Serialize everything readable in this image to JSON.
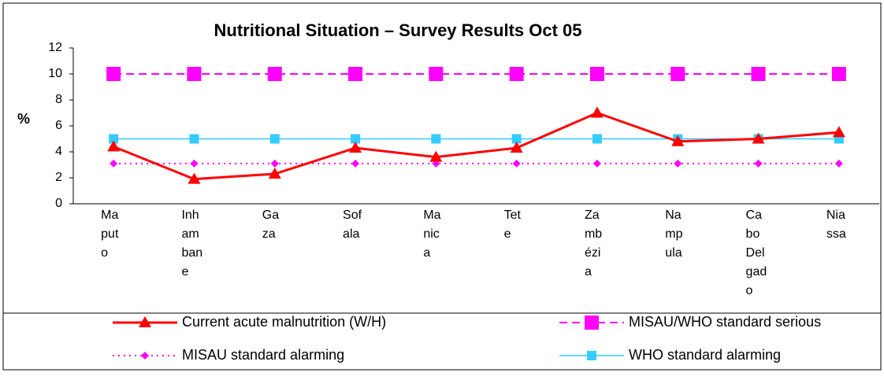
{
  "chart_data": {
    "type": "line",
    "title": "Nutritional Situation – Survey Results Oct 05",
    "y_label": "%",
    "categories": [
      "Maputo",
      "Inhambane",
      "Gaza",
      "Sofala",
      "Manica",
      "Tete",
      "Zambézia",
      "Nampula",
      "Cabo Delgado",
      "Niassa"
    ],
    "series": [
      {
        "name": "Current acute malnutrition (W/H)",
        "color": "#ff0000",
        "values": [
          4.4,
          1.9,
          2.3,
          4.3,
          3.6,
          4.3,
          7.0,
          4.8,
          5.0,
          5.5
        ]
      },
      {
        "name": "MISAU/WHO standard serious",
        "color": "#ff00ff",
        "values": [
          10,
          10,
          10,
          10,
          10,
          10,
          10,
          10,
          10,
          10
        ]
      },
      {
        "name": "MISAU standard alarming",
        "color": "#ff00ff",
        "values": [
          3.1,
          3.1,
          3.1,
          3.1,
          3.1,
          3.1,
          3.1,
          3.1,
          3.1,
          3.1
        ]
      },
      {
        "name": "WHO standard alarming",
        "color": "#33ccff",
        "values": [
          5,
          5,
          5,
          5,
          5,
          5,
          5,
          5,
          5,
          5
        ]
      }
    ],
    "ylim": [
      0,
      12
    ],
    "yticks": [
      0,
      2,
      4,
      6,
      8,
      10,
      12
    ],
    "legend": "bottom"
  }
}
